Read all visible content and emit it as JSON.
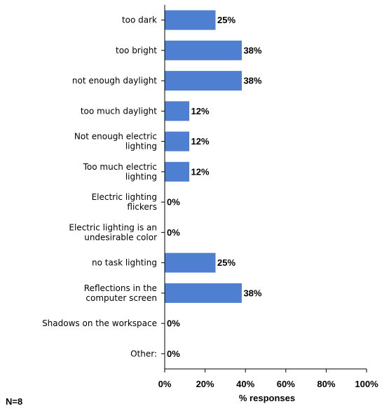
{
  "chart_data": {
    "type": "bar",
    "orientation": "horizontal",
    "categories": [
      [
        "too dark"
      ],
      [
        "too bright"
      ],
      [
        "not enough daylight"
      ],
      [
        "too much daylight"
      ],
      [
        "Not enough electric",
        "lighting"
      ],
      [
        "Too much electric",
        "lighting"
      ],
      [
        "Electric lighting",
        "flickers"
      ],
      [
        "Electric lighting is an",
        "undesirable color"
      ],
      [
        "no task lighting"
      ],
      [
        "Reflections in the",
        "computer screen"
      ],
      [
        "Shadows on the workspace"
      ],
      [
        "Other:"
      ]
    ],
    "values": [
      25,
      38,
      38,
      12,
      12,
      12,
      0,
      0,
      25,
      38,
      0,
      0
    ],
    "value_labels": [
      "25%",
      "38%",
      "38%",
      "12%",
      "12%",
      "12%",
      "0%",
      "0%",
      "25%",
      "38%",
      "0%",
      "0%"
    ],
    "xlim": [
      0,
      100
    ],
    "xticks": [
      0,
      20,
      40,
      60,
      80,
      100
    ],
    "xtick_labels": [
      "0%",
      "20%",
      "40%",
      "60%",
      "80%",
      "100%"
    ],
    "xlabel": "% responses",
    "grid": false,
    "bar_color": "#4f7fd1"
  },
  "note": "N=8"
}
